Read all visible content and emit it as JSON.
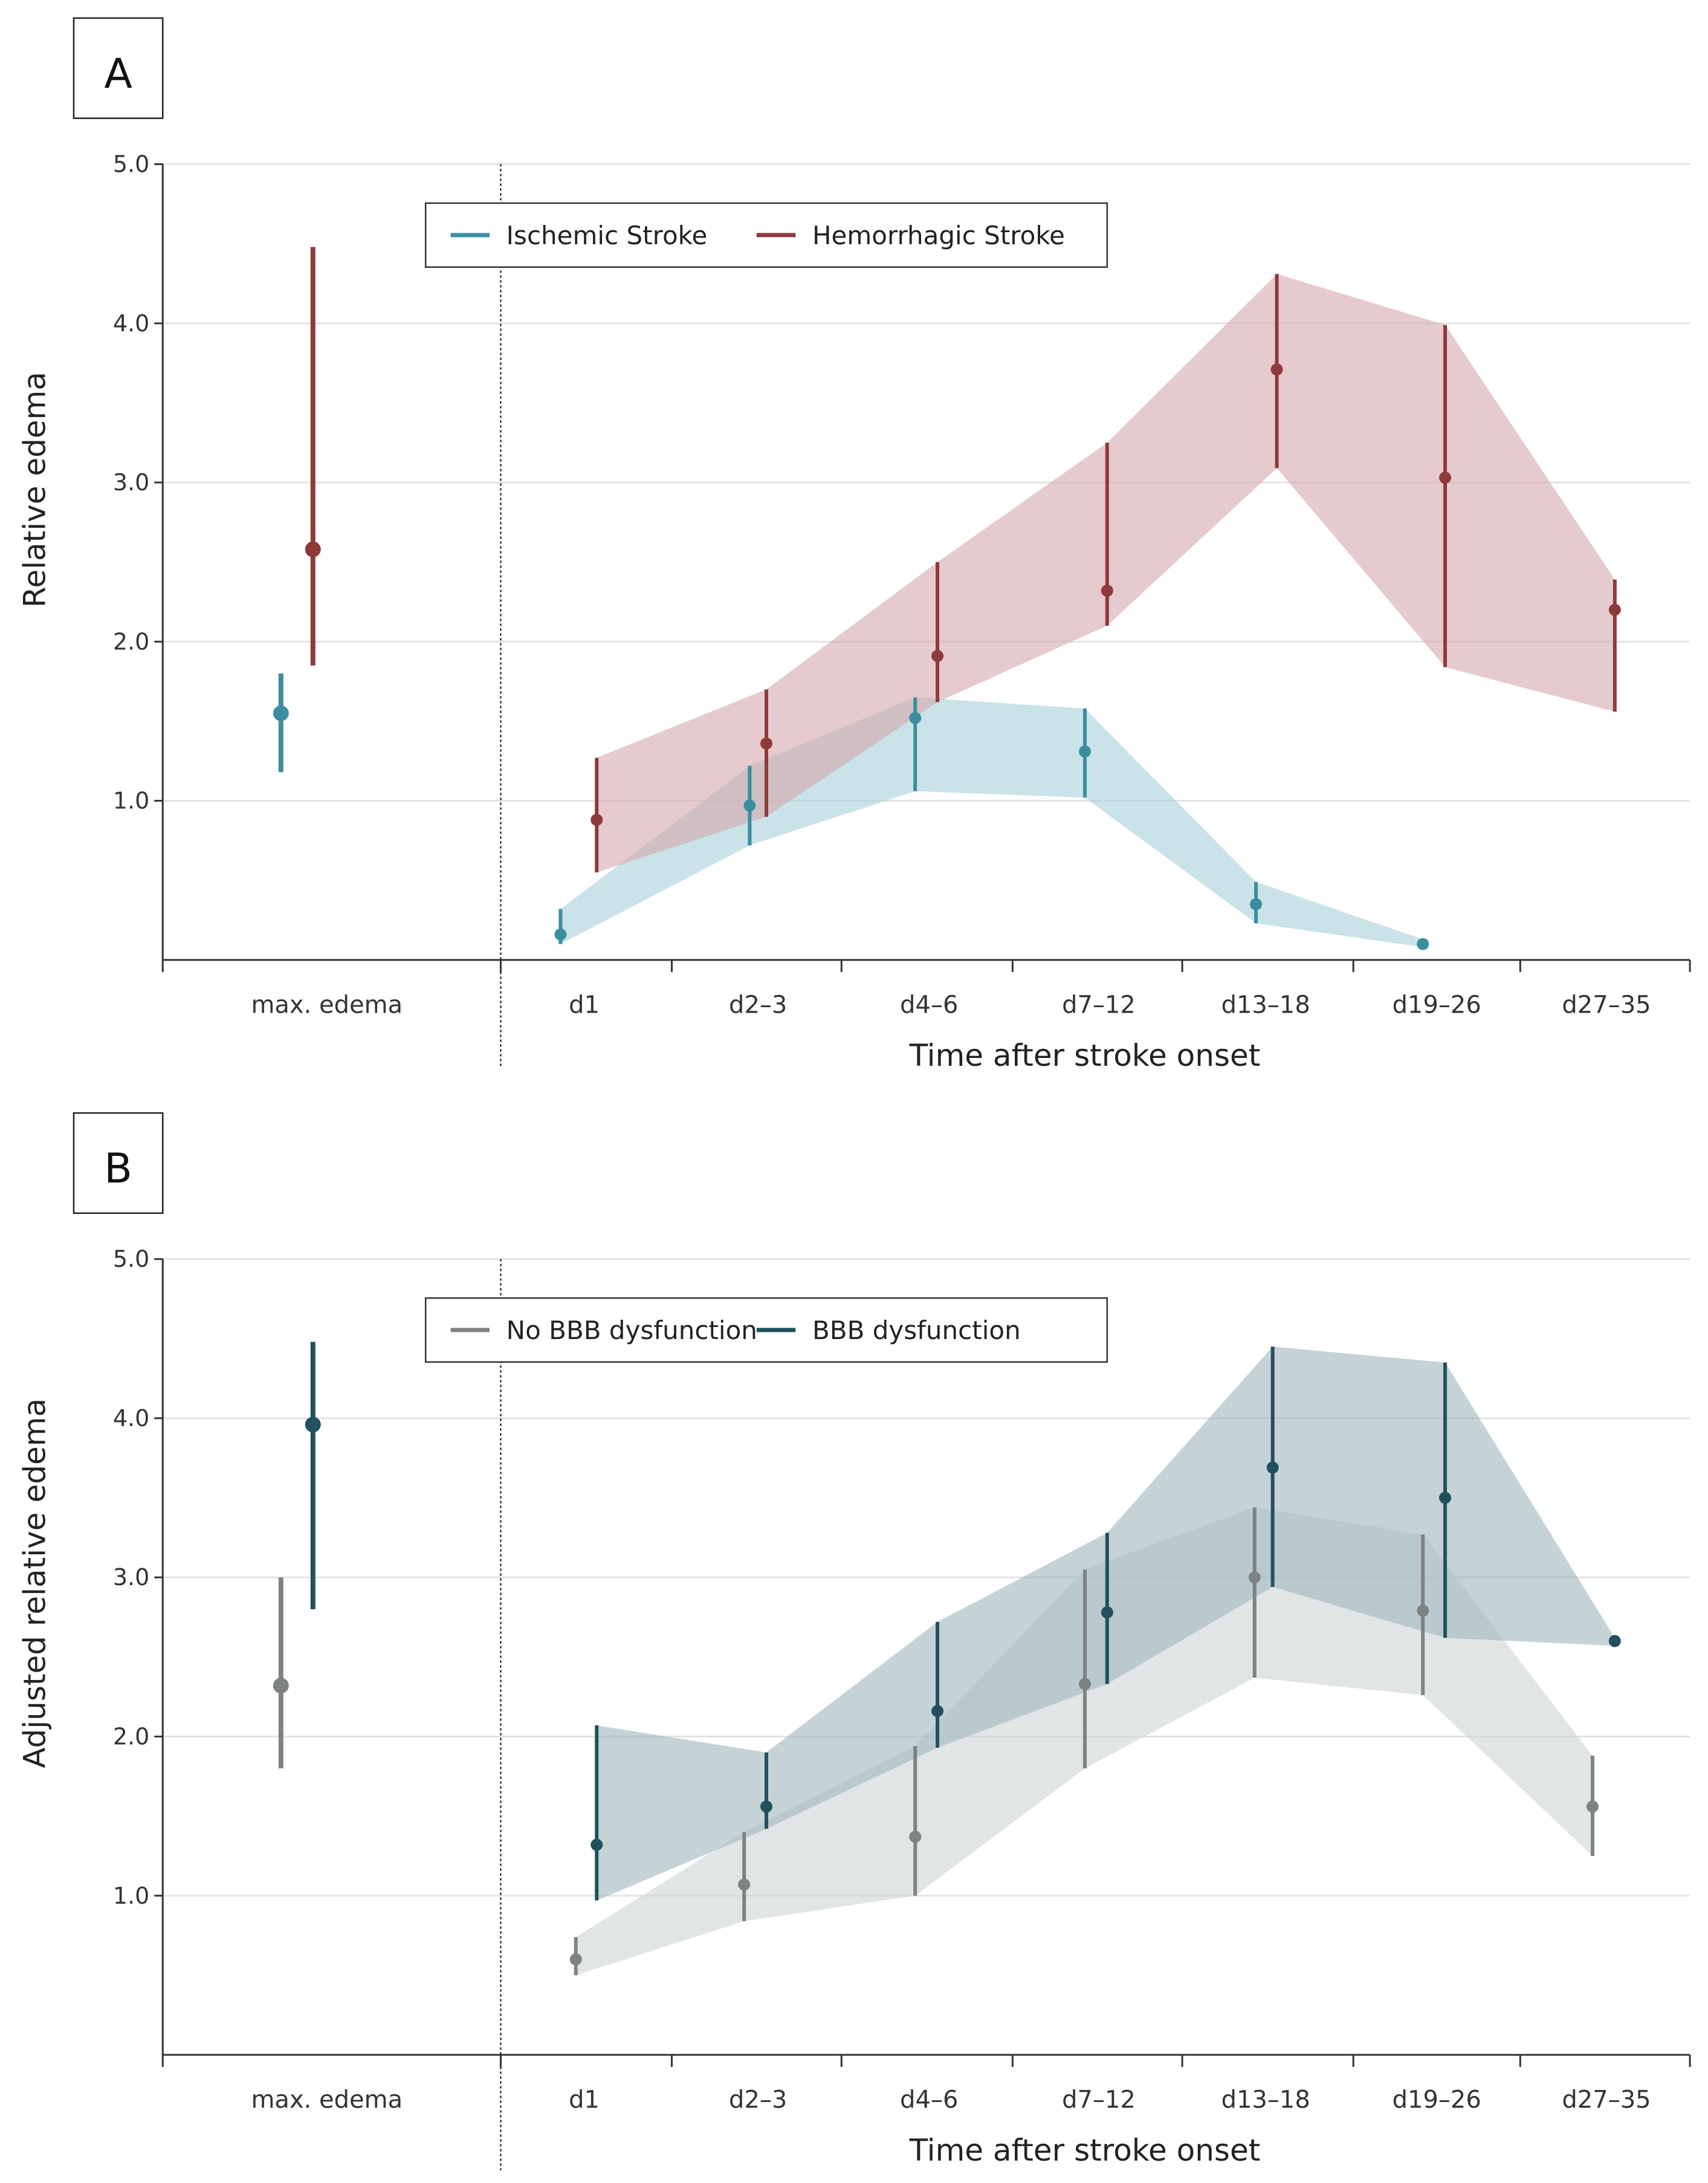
{
  "chart_data": [
    {
      "type": "line",
      "panel_label": "A",
      "categories": [
        "max. edema",
        "d1",
        "d2–3",
        "d4–6",
        "d7–12",
        "d13–18",
        "d19–26",
        "d27–35"
      ],
      "y_ticks": [
        "1.0",
        "2.0",
        "3.0",
        "4.0",
        "5.0"
      ],
      "ylim": [
        0,
        5
      ],
      "xlabel": "Time after stroke onset",
      "ylabel": "Relative edema",
      "legend_position": "top-center",
      "series": [
        {
          "name": "Ischemic Stroke",
          "color": "#3b8ea0",
          "band_color": "#a7d0da",
          "max": {
            "mean": 1.55,
            "lo": 1.18,
            "hi": 1.8
          },
          "points": [
            {
              "cat": "d1",
              "mean": 0.16,
              "lo": 0.1,
              "hi": 0.32
            },
            {
              "cat": "d2–3",
              "mean": 0.97,
              "lo": 0.72,
              "hi": 1.22
            },
            {
              "cat": "d4–6",
              "mean": 1.52,
              "lo": 1.06,
              "hi": 1.65
            },
            {
              "cat": "d7–12",
              "mean": 1.31,
              "lo": 1.02,
              "hi": 1.58
            },
            {
              "cat": "d13–18",
              "mean": 0.35,
              "lo": 0.23,
              "hi": 0.49
            },
            {
              "cat": "d19–26",
              "mean": 0.1,
              "lo": 0.08,
              "hi": 0.13
            }
          ]
        },
        {
          "name": "Hemorrhagic Stroke",
          "color": "#8e3a3a",
          "band_color": "#d4a9ac",
          "max": {
            "mean": 2.58,
            "lo": 1.85,
            "hi": 4.48
          },
          "points": [
            {
              "cat": "d1",
              "mean": 0.88,
              "lo": 0.55,
              "hi": 1.27
            },
            {
              "cat": "d2–3",
              "mean": 1.36,
              "lo": 0.9,
              "hi": 1.7
            },
            {
              "cat": "d4–6",
              "mean": 1.91,
              "lo": 1.62,
              "hi": 2.5
            },
            {
              "cat": "d7–12",
              "mean": 2.32,
              "lo": 2.1,
              "hi": 3.25
            },
            {
              "cat": "d13–18",
              "mean": 3.71,
              "lo": 3.09,
              "hi": 4.31
            },
            {
              "cat": "d19–26",
              "mean": 3.03,
              "lo": 1.84,
              "hi": 3.99
            },
            {
              "cat": "d27–35",
              "mean": 2.2,
              "lo": 1.56,
              "hi": 2.39
            }
          ]
        }
      ]
    },
    {
      "type": "line",
      "panel_label": "B",
      "categories": [
        "max. edema",
        "d1",
        "d2–3",
        "d4–6",
        "d7–12",
        "d13–18",
        "d19–26",
        "d27–35"
      ],
      "y_ticks": [
        "1.0",
        "2.0",
        "3.0",
        "4.0",
        "5.0"
      ],
      "ylim": [
        0,
        5
      ],
      "xlabel": "Time after stroke onset",
      "ylabel": "Adjusted relative edema",
      "legend_position": "top-center",
      "series": [
        {
          "name": "No BBB dysfunction",
          "color": "#7e8283",
          "band_color": "#cfd4d5",
          "max": {
            "mean": 2.32,
            "lo": 1.8,
            "hi": 3.0
          },
          "points": [
            {
              "cat": "d1",
              "mean": 0.6,
              "lo": 0.5,
              "hi": 0.74
            },
            {
              "cat": "d2–3",
              "mean": 1.07,
              "lo": 0.84,
              "hi": 1.4
            },
            {
              "cat": "d4–6",
              "mean": 1.37,
              "lo": 1.0,
              "hi": 1.94
            },
            {
              "cat": "d7–12",
              "mean": 2.33,
              "lo": 1.8,
              "hi": 3.05
            },
            {
              "cat": "d13–18",
              "mean": 3.0,
              "lo": 2.37,
              "hi": 3.44
            },
            {
              "cat": "d19–26",
              "mean": 2.79,
              "lo": 2.26,
              "hi": 3.27
            },
            {
              "cat": "d27–35",
              "mean": 1.56,
              "lo": 1.25,
              "hi": 1.88
            }
          ]
        },
        {
          "name": "BBB dysfunction",
          "color": "#22505e",
          "band_color": "#9fb6bc",
          "max": {
            "mean": 3.96,
            "lo": 2.8,
            "hi": 4.48
          },
          "points": [
            {
              "cat": "d1",
              "mean": 1.32,
              "lo": 0.97,
              "hi": 2.07
            },
            {
              "cat": "d2–3",
              "mean": 1.56,
              "lo": 1.42,
              "hi": 1.9
            },
            {
              "cat": "d4–6",
              "mean": 2.16,
              "lo": 1.93,
              "hi": 2.72
            },
            {
              "cat": "d7–12",
              "mean": 2.78,
              "lo": 2.33,
              "hi": 3.28
            },
            {
              "cat": "d13–18",
              "mean": 3.69,
              "lo": 2.94,
              "hi": 4.45
            },
            {
              "cat": "d19–26",
              "mean": 3.5,
              "lo": 2.62,
              "hi": 4.35
            },
            {
              "cat": "d27–35",
              "mean": 2.6,
              "lo": 2.57,
              "hi": 2.62
            }
          ]
        }
      ]
    }
  ]
}
